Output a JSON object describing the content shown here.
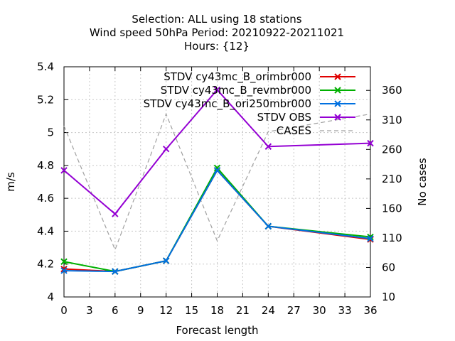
{
  "chart_data": {
    "type": "line",
    "title_lines": [
      "Selection: ALL using    18 stations",
      "Wind speed 50hPa   Period: 20210922-20211021",
      "Hours: {12}"
    ],
    "xlabel": "Forecast length",
    "ylabel": "m/s",
    "y2label": "No cases",
    "xlim": [
      0,
      36
    ],
    "ylim": [
      4.0,
      5.4
    ],
    "y2lim": [
      10,
      400
    ],
    "x_ticks": [
      0,
      3,
      6,
      9,
      12,
      15,
      18,
      21,
      24,
      27,
      30,
      33,
      36
    ],
    "y_ticks": [
      4,
      4.2,
      4.4,
      4.6,
      4.8,
      5,
      5.2,
      5.4
    ],
    "y_tick_labels": [
      "4",
      "4.2",
      "4.4",
      "4.6",
      "4.8",
      "5",
      "5.2",
      "5.4"
    ],
    "y2_ticks": [
      10,
      60,
      110,
      160,
      210,
      260,
      310,
      360
    ],
    "grid": true,
    "legend_position": "top-right",
    "x": [
      0,
      6,
      12,
      18,
      24,
      36
    ],
    "series": [
      {
        "name": "STDV cy43mc_B_orimbr000",
        "color": "#e00000",
        "marker": "x",
        "axis": "y",
        "values": [
          4.17,
          4.155,
          4.22,
          4.77,
          4.43,
          4.35
        ]
      },
      {
        "name": "STDV cy43mc_B_revmbr000",
        "color": "#00b000",
        "marker": "x",
        "axis": "y",
        "values": [
          4.215,
          4.155,
          4.22,
          4.785,
          4.43,
          4.365
        ]
      },
      {
        "name": "STDV cy43mc_B_ori250mbr000",
        "color": "#0070e0",
        "marker": "x",
        "axis": "y",
        "values": [
          4.16,
          4.155,
          4.22,
          4.77,
          4.43,
          4.355
        ]
      },
      {
        "name": "STDV OBS",
        "color": "#9400d3",
        "marker": "x",
        "axis": "y",
        "values": [
          4.77,
          4.505,
          4.9,
          5.26,
          4.915,
          4.935
        ]
      },
      {
        "name": "CASES",
        "color": "#a0a0a0",
        "marker": "none",
        "dash": true,
        "axis": "y2",
        "values": [
          300,
          90,
          320,
          105,
          290,
          320
        ]
      }
    ]
  }
}
